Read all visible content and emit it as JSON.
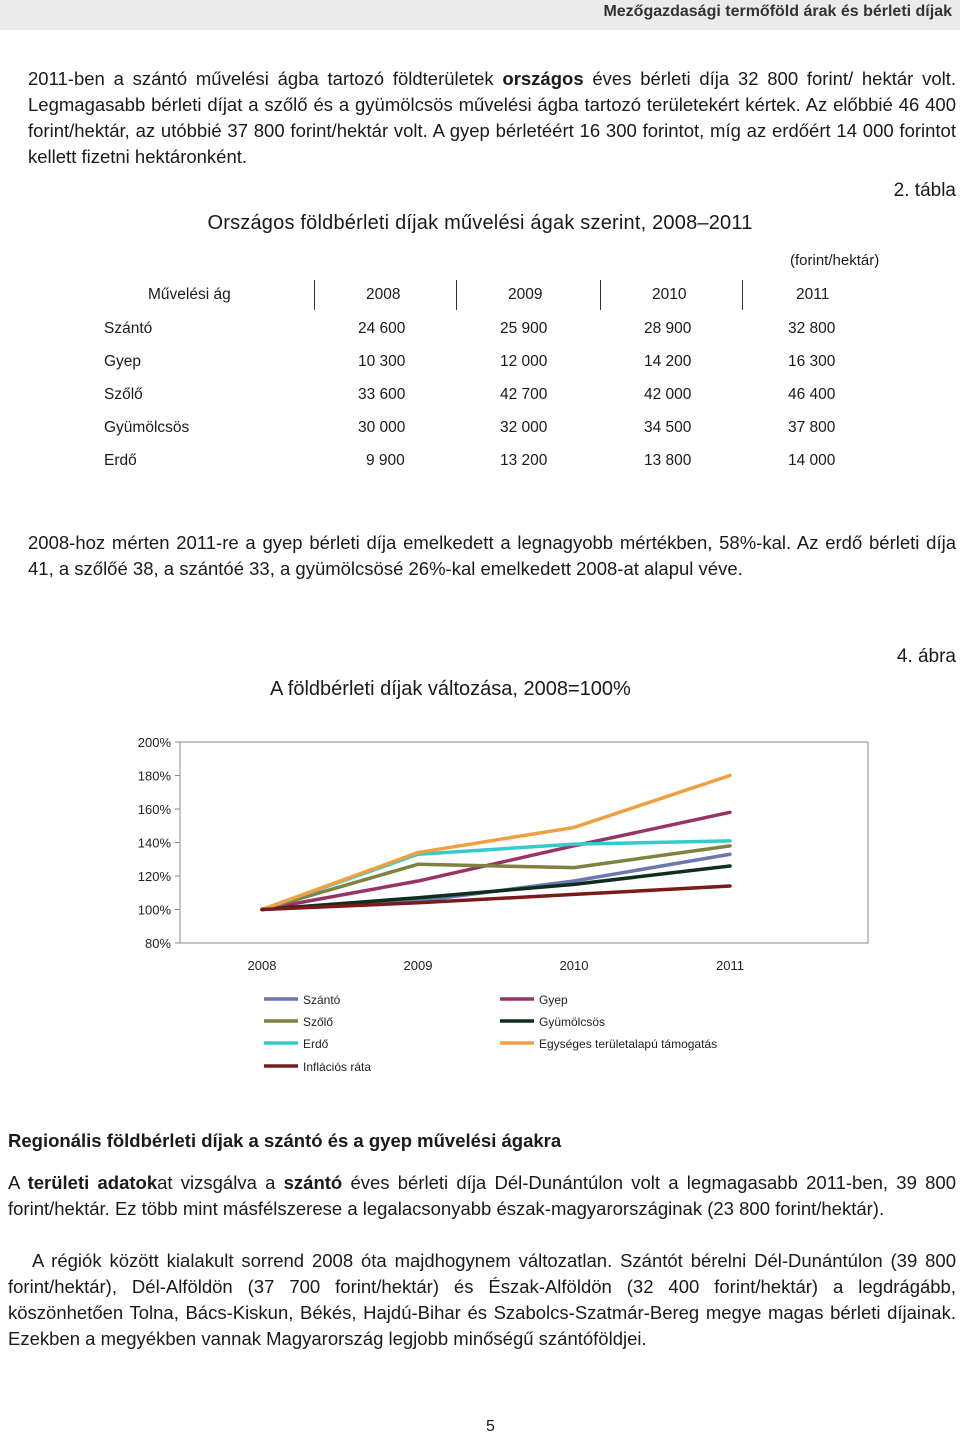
{
  "header": {
    "title": "Mezőgazdasági termőföld árak és bérleti díjak"
  },
  "intro": {
    "t1": "2011-ben a szántó művelési ágba tartozó földterületek ",
    "b1": "országos",
    "t2": " éves bérleti díja 32 800 forint/ hektár volt. Legmagasabb bérleti díjat a szőlő és a gyümölcsös művelési ágba tartozó területekért kértek. Az előbbié 46 400 forint/hektár, az utóbbié 37 800 forint/hektár volt. A gyep bérletéért 16 300 forintot, míg az erdőért 14 000 forintot kellett fizetni hektáronként."
  },
  "table": {
    "label": "2. tábla",
    "title": "Országos földbérleti díjak művelési ágak szerint, 2008–2011",
    "unit": "(forint/hektár)",
    "header": [
      "Művelési ág",
      "2008",
      "2009",
      "2010",
      "2011"
    ],
    "rows": [
      [
        "Szántó",
        "24 600",
        "25 900",
        "28 900",
        "32 800"
      ],
      [
        "Gyep",
        "10 300",
        "12 000",
        "14 200",
        "16 300"
      ],
      [
        "Szőlő",
        "33 600",
        "42 700",
        "42 000",
        "46 400"
      ],
      [
        "Gyümölcsös",
        "30 000",
        "32 000",
        "34 500",
        "37 800"
      ],
      [
        "Erdő",
        "9 900",
        "13 200",
        "13 800",
        "14 000"
      ]
    ]
  },
  "analysis": "2008-hoz mérten 2011-re a gyep bérleti díja emelkedett a legnagyobb mértékben, 58%-kal. Az erdő bérleti díja 41, a szőlőé 38, a szántóé 33, a gyümölcsösé 26%-kal emelkedett 2008-at alapul véve.",
  "figure": {
    "label": "4. ábra"
  },
  "chart_data": {
    "type": "line",
    "title": "A földbérleti díjak változása, 2008=100%",
    "categories": [
      "2008",
      "2009",
      "2010",
      "2011"
    ],
    "ylim": [
      80,
      200
    ],
    "yticks": [
      "200%",
      "180%",
      "160%",
      "140%",
      "120%",
      "100%",
      "80%"
    ],
    "ytick_values": [
      200,
      180,
      160,
      140,
      120,
      100,
      80
    ],
    "grid": false,
    "legend_position": "bottom",
    "series": [
      {
        "name": "Szántó",
        "color": "#6b78b4",
        "values": [
          100,
          105,
          117,
          133
        ]
      },
      {
        "name": "Gyep",
        "color": "#993366",
        "values": [
          100,
          117,
          138,
          158
        ]
      },
      {
        "name": "Szőlő",
        "color": "#808040",
        "values": [
          100,
          127,
          125,
          138
        ]
      },
      {
        "name": "Gyümölcsös",
        "color": "#0d2e1a",
        "values": [
          100,
          107,
          115,
          126
        ]
      },
      {
        "name": "Erdő",
        "color": "#33cccc",
        "values": [
          100,
          133,
          139,
          141
        ]
      },
      {
        "name": "Egységes területalapú támogatás",
        "color": "#f0a040",
        "values": [
          100,
          134,
          149,
          180
        ]
      },
      {
        "name": "Inflációs ráta",
        "color": "#7a1a1a",
        "values": [
          100,
          104,
          109,
          114
        ]
      }
    ]
  },
  "section": {
    "heading": "Regionális földbérleti díjak a szántó és a gyep művelési ágakra"
  },
  "body": {
    "p1_t1": "A ",
    "p1_b1": "területi adatok",
    "p1_t2": "at vizsgálva a ",
    "p1_b2": "szántó",
    "p1_t3": " éves bérleti díja Dél-Dunántúlon volt a legmagasabb 2011-ben, 39 800 forint/hektár. Ez több mint másfélszerese a legalacsonyabb észak-magyarországinak (23 800 forint/hektár).",
    "p2": "A régiók között kialakult sorrend 2008 óta majdhogynem változatlan. Szántót bérelni Dél-Dunántúlon (39 800 forint/hektár), Dél-Alföldön (37 700 forint/hektár) és Észak-Alföldön (32 400 forint/hektár) a legdrágább, köszönhetően Tolna, Bács-Kiskun, Békés, Hajdú-Bihar és Szabolcs-Szatmár-Bereg megye magas bérleti díjainak. Ezekben a megyékben vannak Magyarország legjobb minőségű szántóföldjei."
  },
  "page": {
    "number": "5"
  }
}
